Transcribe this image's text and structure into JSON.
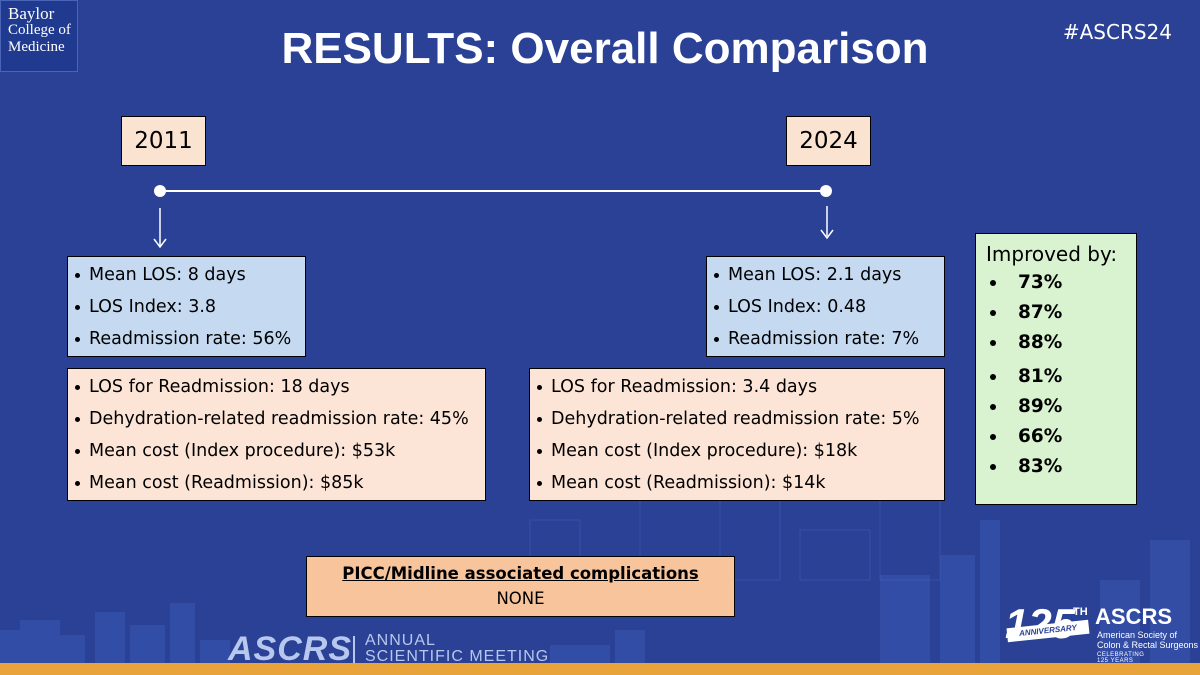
{
  "header": {
    "logo_lines": [
      "Baylor",
      "College of",
      "Medicine"
    ],
    "hashtag": "#ASCRS24",
    "title": "RESULTS: Overall Comparison"
  },
  "timeline": {
    "year_left": "2011",
    "year_right": "2024"
  },
  "box_2011_top": {
    "items": [
      "Mean LOS: 8 days",
      "LOS Index: 3.8",
      "Readmission rate: 56%"
    ]
  },
  "box_2011_bottom": {
    "items": [
      "LOS for Readmission: 18 days",
      "Dehydration-related readmission rate: 45%",
      "Mean cost (Index procedure): $53k",
      "Mean cost (Readmission): $85k"
    ]
  },
  "box_2024_top": {
    "items": [
      "Mean LOS: 2.1 days",
      "LOS Index: 0.48",
      "Readmission rate: 7%"
    ]
  },
  "box_2024_bottom": {
    "items": [
      "LOS for Readmission: 3.4 days",
      "Dehydration-related readmission rate: 5%",
      "Mean cost (Index procedure): $18k",
      "Mean cost (Readmission): $14k"
    ]
  },
  "improved": {
    "heading": "Improved by:",
    "values": [
      "73%",
      "87%",
      "88%",
      "81%",
      "89%",
      "66%",
      "83%"
    ]
  },
  "picc": {
    "heading": "PICC/Midline associated complications",
    "value": "NONE"
  },
  "footer": {
    "brand": "ASCRS",
    "meeting_line1": "ANNUAL",
    "meeting_line2": "SCIENTIFIC MEETING",
    "badge_number": "125",
    "badge_suffix": "TH",
    "badge_ribbon": "ANNIVERSARY",
    "badge_org": "ASCRS",
    "badge_org_full_1": "American Society of",
    "badge_org_full_2": "Colon & Rectal Surgeons",
    "badge_tagline": "CELEBRATING 125 YEARS"
  },
  "colors": {
    "background": "#2a4196",
    "accent_band": "#e8a43a",
    "year_box": "#fbe3d2",
    "blue_box": "#c5d9f1",
    "peach_box": "#fce4d6",
    "green_box": "#d9f2d0",
    "picc_box": "#f7c49b"
  }
}
